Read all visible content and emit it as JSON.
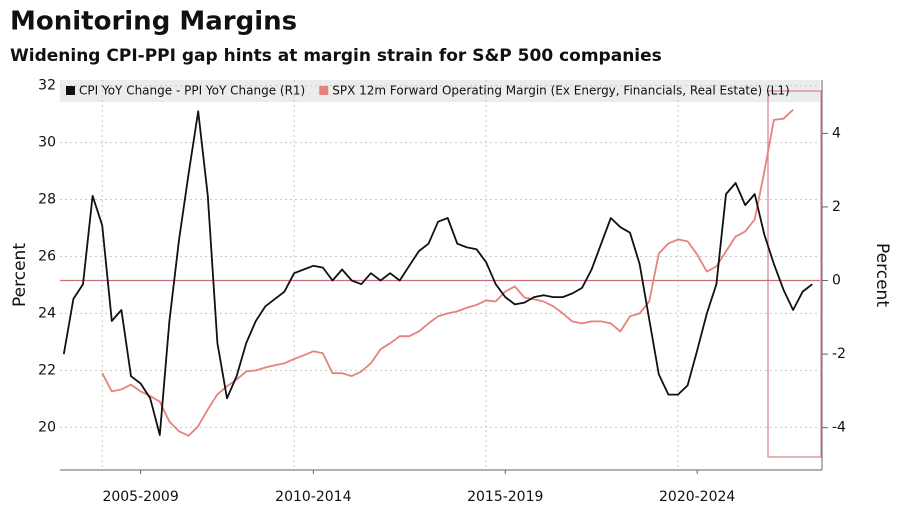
{
  "chart_data": {
    "type": "line",
    "title": "Monitoring Margins",
    "subtitle": "Widening CPI-PPI gap hints at margin strain for S&P 500 companies",
    "ylabel": "Percent",
    "y2label": "Percent",
    "x": [
      2006,
      2006.25,
      2006.5,
      2006.75,
      2007,
      2007.25,
      2007.5,
      2007.75,
      2008,
      2008.25,
      2008.5,
      2008.75,
      2009,
      2009.25,
      2009.5,
      2009.75,
      2010,
      2010.25,
      2010.5,
      2010.75,
      2011,
      2011.25,
      2011.5,
      2011.75,
      2012,
      2012.25,
      2012.5,
      2012.75,
      2013,
      2013.25,
      2013.5,
      2013.75,
      2014,
      2014.25,
      2014.5,
      2014.75,
      2015,
      2015.25,
      2015.5,
      2015.75,
      2016,
      2016.25,
      2016.5,
      2016.75,
      2017,
      2017.25,
      2017.5,
      2017.75,
      2018,
      2018.25,
      2018.5,
      2018.75,
      2019,
      2019.25,
      2019.5,
      2019.75,
      2020,
      2020.25,
      2020.5,
      2020.75,
      2021,
      2021.25,
      2021.5,
      2021.75,
      2022,
      2022.25,
      2022.5,
      2022.75,
      2023,
      2023.25,
      2023.5,
      2023.75,
      2024,
      2024.25,
      2024.5,
      2024.75,
      2025,
      2025.25,
      2025.5
    ],
    "series": [
      {
        "name": "CPI YoY Change - PPI YoY Change (R1)",
        "color": "#111111",
        "axis": "y2",
        "values": [
          -2.0,
          -0.5,
          -0.1,
          2.3,
          1.5,
          -1.1,
          -0.8,
          -2.6,
          -2.8,
          -3.2,
          -4.2,
          -1.1,
          1.1,
          2.9,
          4.6,
          2.3,
          -1.7,
          -3.2,
          -2.6,
          -1.7,
          -1.1,
          -0.7,
          -0.5,
          -0.3,
          0.2,
          0.3,
          0.4,
          0.35,
          0.0,
          0.3,
          0.0,
          -0.1,
          0.2,
          0.0,
          0.2,
          0.0,
          0.4,
          0.8,
          1.0,
          1.6,
          1.7,
          1.0,
          0.9,
          0.85,
          0.5,
          -0.1,
          -0.45,
          -0.65,
          -0.6,
          -0.45,
          -0.4,
          -0.45,
          -0.45,
          -0.35,
          -0.2,
          0.3,
          1.0,
          1.7,
          1.45,
          1.3,
          0.45,
          -1.05,
          -2.55,
          -3.1,
          -3.1,
          -2.85,
          -1.9,
          -0.9,
          -0.1,
          2.35,
          2.65,
          2.05,
          2.35,
          1.25,
          0.45,
          -0.25,
          -0.8,
          -0.3,
          -0.1
        ]
      },
      {
        "name": "SPX 12m Forward Operating Margin (Ex Energy, Financials, Real Estate) (L1)",
        "color": "#e5837b",
        "values": [
          null,
          null,
          null,
          null,
          21.9,
          21.26,
          21.33,
          21.5,
          21.26,
          21.1,
          20.9,
          20.2,
          19.86,
          19.7,
          20.04,
          20.63,
          21.16,
          21.44,
          21.68,
          21.96,
          22.0,
          22.1,
          22.18,
          22.25,
          22.4,
          22.53,
          22.67,
          22.6,
          21.9,
          21.9,
          21.8,
          21.96,
          22.25,
          22.74,
          22.95,
          23.2,
          23.2,
          23.37,
          23.65,
          23.9,
          24.0,
          24.07,
          24.2,
          24.3,
          24.46,
          24.42,
          24.77,
          24.95,
          24.56,
          24.5,
          24.42,
          24.25,
          24.0,
          23.72,
          23.65,
          23.72,
          23.72,
          23.65,
          23.37,
          23.9,
          24.0,
          24.42,
          26.1,
          26.46,
          26.6,
          26.53,
          26.07,
          25.47,
          25.65,
          26.18,
          26.7,
          26.88,
          27.3,
          28.98,
          30.8,
          30.84,
          31.16,
          null,
          null
        ]
      }
    ],
    "xlim": [
      2005.9,
      2025.7
    ],
    "xticks": [
      {
        "value": 2008,
        "label": "2005-2009"
      },
      {
        "value": 2012.5,
        "label": "2010-2014"
      },
      {
        "value": 2017.5,
        "label": "2015-2019"
      },
      {
        "value": 2022.5,
        "label": "2020-2024"
      }
    ],
    "x_gridlines": [
      2007,
      2012,
      2017,
      2022
    ],
    "ylim": [
      18.5,
      32.2
    ],
    "yticks": [
      20,
      22,
      24,
      26,
      28,
      30,
      32
    ],
    "y2lim": [
      -5.15,
      5.45
    ],
    "y2ticks": [
      -4,
      -2,
      0,
      2,
      4
    ],
    "reference_line": {
      "axis": "y2",
      "value": 0,
      "color": "#c9707a"
    },
    "grid": true,
    "legend": "top"
  }
}
